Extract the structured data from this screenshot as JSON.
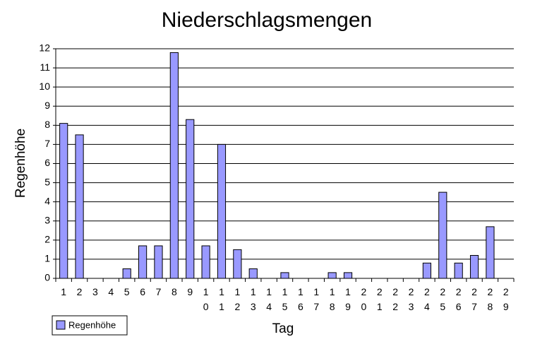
{
  "chart_data": {
    "type": "bar",
    "title": "Niederschlagsmengen",
    "x_label": "Tag",
    "y_label": "Regenhöhe",
    "categories": [
      "1",
      "2",
      "3",
      "4",
      "5",
      "6",
      "7",
      "8",
      "9",
      "10",
      "11",
      "12",
      "13",
      "14",
      "15",
      "16",
      "17",
      "18",
      "19",
      "20",
      "21",
      "22",
      "23",
      "24",
      "25",
      "26",
      "27",
      "28",
      "29"
    ],
    "series": [
      {
        "name": "Regenhöhe",
        "color": "#9999ff",
        "values": [
          8.1,
          7.5,
          0,
          0,
          0.5,
          1.7,
          1.7,
          11.8,
          8.3,
          1.7,
          7.0,
          1.5,
          0.5,
          0,
          0.3,
          0,
          0,
          0.3,
          0.3,
          0,
          0,
          0,
          0,
          0.8,
          4.5,
          0.8,
          1.2,
          2.7,
          0
        ]
      }
    ],
    "ylim": [
      0,
      12
    ],
    "yticks": [
      0,
      1,
      2,
      3,
      4,
      5,
      6,
      7,
      8,
      9,
      10,
      11,
      12
    ],
    "grid": true,
    "legend": "bottom-left"
  }
}
